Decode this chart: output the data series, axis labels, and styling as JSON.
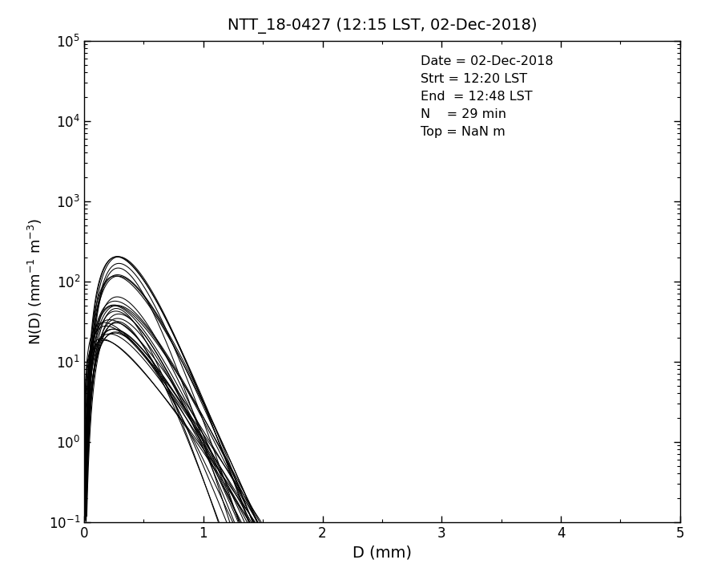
{
  "title": "NTT_18-0427 (12:15 LST, 02-Dec-2018)",
  "xlabel": "D (mm)",
  "ylabel": "N(D) (mm$^{-1}$ m$^{-3}$)",
  "annotation_lines": [
    "Date = 02-Dec-2018",
    "Strt = 12:20 LST",
    "End  = 12:48 LST",
    "N    = 29 min",
    "Top = NaN m"
  ],
  "xlim": [
    0,
    5
  ],
  "ylim": [
    0.1,
    100000
  ],
  "background_color": "#ffffff",
  "line_color": "#000000",
  "line_width": 0.75,
  "gamma_params": [
    {
      "N0": 1200000.0,
      "mu": 4.0,
      "lam": 14.0
    },
    {
      "N0": 800000.0,
      "mu": 3.8,
      "lam": 13.0
    },
    {
      "N0": 500000.0,
      "mu": 3.5,
      "lam": 12.0
    },
    {
      "N0": 300000.0,
      "mu": 3.2,
      "lam": 11.5
    },
    {
      "N0": 200000.0,
      "mu": 3.0,
      "lam": 11.0
    },
    {
      "N0": 150000.0,
      "mu": 3.5,
      "lam": 13.0
    },
    {
      "N0": 100000.0,
      "mu": 3.0,
      "lam": 10.5
    },
    {
      "N0": 70000.0,
      "mu": 2.8,
      "lam": 10.0
    },
    {
      "N0": 50000.0,
      "mu": 3.2,
      "lam": 11.0
    },
    {
      "N0": 40000.0,
      "mu": 2.5,
      "lam": 9.5
    },
    {
      "N0": 30000.0,
      "mu": 3.0,
      "lam": 11.0
    },
    {
      "N0": 20000.0,
      "mu": 2.8,
      "lam": 10.0
    },
    {
      "N0": 15000.0,
      "mu": 2.5,
      "lam": 9.0
    },
    {
      "N0": 10000.0,
      "mu": 2.2,
      "lam": 8.5
    },
    {
      "N0": 8000.0,
      "mu": 2.5,
      "lam": 9.5
    },
    {
      "N0": 6000.0,
      "mu": 2.0,
      "lam": 8.0
    },
    {
      "N0": 4000.0,
      "mu": 2.2,
      "lam": 8.5
    },
    {
      "N0": 3000.0,
      "mu": 2.0,
      "lam": 8.0
    },
    {
      "N0": 2000.0,
      "mu": 1.8,
      "lam": 7.5
    },
    {
      "N0": 1500.0,
      "mu": 1.5,
      "lam": 7.0
    },
    {
      "N0": 1000.0,
      "mu": 1.5,
      "lam": 7.0
    },
    {
      "N0": 700.0,
      "mu": 1.2,
      "lam": 6.5
    },
    {
      "N0": 500.0,
      "mu": 1.0,
      "lam": 6.0
    },
    {
      "N0": 300.0,
      "mu": 1.0,
      "lam": 6.0
    },
    {
      "N0": 200.0,
      "mu": 0.8,
      "lam": 5.5
    },
    {
      "N0": 90000.0,
      "mu": 3.5,
      "lam": 12.5
    },
    {
      "N0": 60000.0,
      "mu": 3.0,
      "lam": 10.8
    },
    {
      "N0": 18000.0,
      "mu": 2.6,
      "lam": 9.8
    },
    {
      "N0": 12000.0,
      "mu": 2.3,
      "lam": 9.2
    }
  ]
}
